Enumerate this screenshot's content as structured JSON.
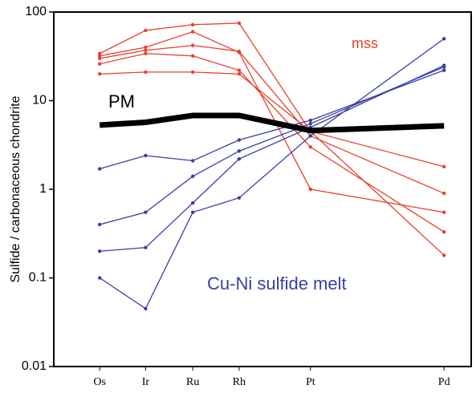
{
  "chart_data": {
    "type": "line",
    "ylabel": "Sulfide / carbonaceous chondrite",
    "categories": [
      "Os",
      "Ir",
      "Ru",
      "Rh",
      "Pt",
      "Pd"
    ],
    "log_y": true,
    "ylim": [
      0.01,
      100
    ],
    "yticks": [
      0.01,
      0.1,
      1,
      10,
      100
    ],
    "annotations": [
      "mss",
      "PM",
      "Cu-Ni sulfide melt"
    ],
    "series": [
      {
        "color": "#e8412c",
        "values": [
          34,
          62,
          72,
          75,
          4.5,
          0.18
        ]
      },
      {
        "color": "#e8412c",
        "values": [
          32,
          40,
          60,
          35,
          1.0,
          0.55
        ]
      },
      {
        "color": "#e8412c",
        "values": [
          30,
          37,
          42,
          36,
          4,
          0.9
        ]
      },
      {
        "color": "#e8412c",
        "values": [
          26,
          34,
          32,
          22,
          3,
          0.33
        ]
      },
      {
        "color": "#e8412c",
        "values": [
          20,
          21,
          21,
          20,
          4.5,
          1.8
        ]
      },
      {
        "color": "#3a3fa3",
        "values": [
          1.7,
          2.4,
          2.1,
          3.6,
          6,
          22
        ]
      },
      {
        "color": "#3a3fa3",
        "values": [
          0.4,
          0.55,
          1.4,
          2.7,
          5.5,
          24
        ]
      },
      {
        "color": "#3a3fa3",
        "values": [
          0.2,
          0.22,
          0.7,
          2.2,
          5,
          25
        ]
      },
      {
        "color": "#3a3fa3",
        "values": [
          0.1,
          0.045,
          0.55,
          0.8,
          4,
          50
        ]
      },
      {
        "color": "#000000",
        "values": [
          5.3,
          5.7,
          6.8,
          6.8,
          4.6,
          5.2
        ]
      }
    ]
  }
}
